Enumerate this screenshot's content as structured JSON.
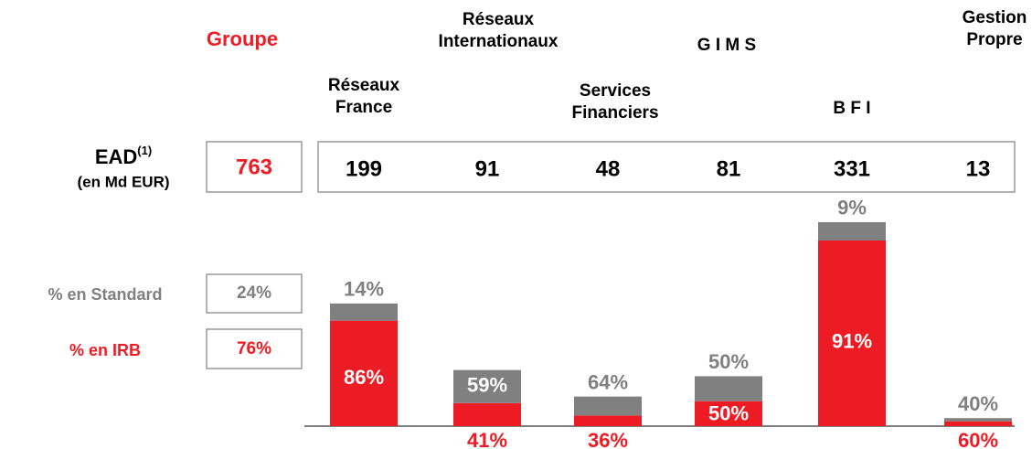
{
  "chart_data": {
    "type": "bar",
    "stacked": true,
    "categories": [
      "Réseaux France",
      "Réseaux Internationaux",
      "Services Financiers",
      "G I M S",
      "B F I",
      "Gestion Propre"
    ],
    "group_name": "Groupe",
    "ead_label": "EAD",
    "ead_footnote": "(1)",
    "ead_unit": "(en Md EUR)",
    "group_ead": 763,
    "ead": [
      199,
      91,
      48,
      81,
      331,
      13
    ],
    "series": [
      {
        "name": "% en IRB",
        "color": "#ed1c24",
        "values": [
          86,
          41,
          36,
          50,
          91,
          60
        ],
        "value_labels": [
          "86%",
          "41%",
          "36%",
          "50%",
          "91%",
          "60%"
        ],
        "group_value": 76,
        "group_label": "76%"
      },
      {
        "name": "% en Standard",
        "color": "#808080",
        "values": [
          14,
          59,
          64,
          50,
          9,
          40
        ],
        "value_labels": [
          "14%",
          "59%",
          "64%",
          "50%",
          "9%",
          "40%"
        ],
        "group_value": 24,
        "group_label": "24%"
      }
    ]
  }
}
